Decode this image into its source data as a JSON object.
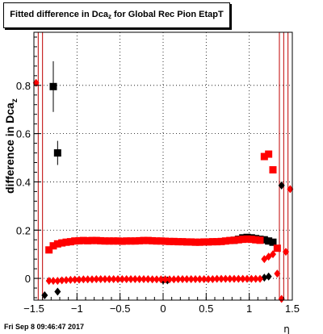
{
  "title": {
    "prefix": "Fitted difference in Dca",
    "subscript": "z",
    "suffix": " for Global Rec Pion EtapT"
  },
  "footer": {
    "timestamp": "Fri Sep  8 09:46:47 2017"
  },
  "chart_data": {
    "type": "scatter",
    "title": "Fitted difference in Dcaz for Global Rec Pion EtapT",
    "xlabel": "η",
    "ylabel": "difference in Dcaz",
    "xlim": [
      -1.5,
      1.5
    ],
    "ylim": [
      -0.09,
      1.02
    ],
    "x_ticks": [
      -1.5,
      -1,
      -0.5,
      0,
      0.5,
      1,
      1.5
    ],
    "x_tick_labels": [
      "−1.5",
      "−1",
      "−0.5",
      "0",
      "0.5",
      "1",
      "1.5"
    ],
    "y_ticks": [
      0,
      0.2,
      0.4,
      0.6,
      0.8
    ],
    "y_tick_labels": [
      "0",
      "0.2",
      "0.4",
      "0.6",
      "0.8"
    ],
    "grid": true,
    "vertical_lines": [
      -1.45,
      -1.4,
      1.35,
      1.4,
      1.45
    ],
    "colors": {
      "series_red": "#ff0000",
      "series_black": "#000000",
      "lines": "#c00000"
    },
    "series": [
      {
        "marker": "square",
        "color": "#000000",
        "points": [
          {
            "x": -1.275,
            "y": 0.795,
            "err": 0.105
          },
          {
            "x": -1.225,
            "y": 0.52,
            "err": 0.05
          },
          {
            "x": 0.825,
            "y": 0.158
          },
          {
            "x": 0.875,
            "y": 0.162
          },
          {
            "x": 0.925,
            "y": 0.168
          },
          {
            "x": 0.975,
            "y": 0.17
          },
          {
            "x": 1.025,
            "y": 0.168
          },
          {
            "x": 1.075,
            "y": 0.165
          },
          {
            "x": 1.125,
            "y": 0.162
          },
          {
            "x": 1.175,
            "y": 0.16
          },
          {
            "x": 1.225,
            "y": 0.155
          },
          {
            "x": 1.275,
            "y": 0.15
          }
        ]
      },
      {
        "marker": "diamond",
        "color": "#000000",
        "points": [
          {
            "x": -1.375,
            "y": -0.07
          },
          {
            "x": -1.225,
            "y": -0.055
          },
          {
            "x": 0.0,
            "y": -0.008
          },
          {
            "x": 0.05,
            "y": -0.008
          },
          {
            "x": 1.175,
            "y": 0.003
          },
          {
            "x": 1.225,
            "y": 0.008
          },
          {
            "x": 1.375,
            "y": 0.385
          }
        ]
      },
      {
        "marker": "square",
        "color": "#ff0000",
        "points": [
          {
            "x": -1.325,
            "y": 0.118
          },
          {
            "x": -1.275,
            "y": 0.135
          },
          {
            "x": -1.225,
            "y": 0.143
          },
          {
            "x": -1.175,
            "y": 0.147
          },
          {
            "x": -1.125,
            "y": 0.15
          },
          {
            "x": -1.075,
            "y": 0.152
          },
          {
            "x": -1.025,
            "y": 0.155
          },
          {
            "x": -0.975,
            "y": 0.156
          },
          {
            "x": -0.925,
            "y": 0.157
          },
          {
            "x": -0.875,
            "y": 0.156
          },
          {
            "x": -0.825,
            "y": 0.157
          },
          {
            "x": -0.775,
            "y": 0.157
          },
          {
            "x": -0.725,
            "y": 0.156
          },
          {
            "x": -0.675,
            "y": 0.155
          },
          {
            "x": -0.625,
            "y": 0.155
          },
          {
            "x": -0.575,
            "y": 0.155
          },
          {
            "x": -0.525,
            "y": 0.155
          },
          {
            "x": -0.475,
            "y": 0.154
          },
          {
            "x": -0.425,
            "y": 0.155
          },
          {
            "x": -0.375,
            "y": 0.155
          },
          {
            "x": -0.325,
            "y": 0.155
          },
          {
            "x": -0.275,
            "y": 0.156
          },
          {
            "x": -0.225,
            "y": 0.157
          },
          {
            "x": -0.175,
            "y": 0.157
          },
          {
            "x": -0.125,
            "y": 0.156
          },
          {
            "x": -0.075,
            "y": 0.155
          },
          {
            "x": -0.025,
            "y": 0.155
          },
          {
            "x": 0.025,
            "y": 0.154
          },
          {
            "x": 0.075,
            "y": 0.153
          },
          {
            "x": 0.125,
            "y": 0.153
          },
          {
            "x": 0.175,
            "y": 0.152
          },
          {
            "x": 0.225,
            "y": 0.152
          },
          {
            "x": 0.275,
            "y": 0.151
          },
          {
            "x": 0.325,
            "y": 0.151
          },
          {
            "x": 0.375,
            "y": 0.15
          },
          {
            "x": 0.425,
            "y": 0.15
          },
          {
            "x": 0.475,
            "y": 0.151
          },
          {
            "x": 0.525,
            "y": 0.151
          },
          {
            "x": 0.575,
            "y": 0.152
          },
          {
            "x": 0.625,
            "y": 0.152
          },
          {
            "x": 0.675,
            "y": 0.153
          },
          {
            "x": 0.725,
            "y": 0.155
          },
          {
            "x": 0.775,
            "y": 0.157
          },
          {
            "x": 0.825,
            "y": 0.158
          },
          {
            "x": 0.875,
            "y": 0.16
          },
          {
            "x": 0.925,
            "y": 0.162
          },
          {
            "x": 0.975,
            "y": 0.163
          },
          {
            "x": 1.025,
            "y": 0.162
          },
          {
            "x": 1.075,
            "y": 0.16
          },
          {
            "x": 1.125,
            "y": 0.158
          },
          {
            "x": 1.175,
            "y": 0.505
          },
          {
            "x": 1.225,
            "y": 0.515
          },
          {
            "x": 1.275,
            "y": 0.45
          },
          {
            "x": 1.325,
            "y": 0.125
          }
        ]
      },
      {
        "marker": "diamond",
        "color": "#ff0000",
        "points": [
          {
            "x": -1.475,
            "y": 0.81
          },
          {
            "x": -1.325,
            "y": -0.01
          },
          {
            "x": -1.275,
            "y": -0.01
          },
          {
            "x": -1.225,
            "y": -0.01
          },
          {
            "x": -1.175,
            "y": -0.008
          },
          {
            "x": -1.125,
            "y": -0.007
          },
          {
            "x": -1.075,
            "y": -0.006
          },
          {
            "x": -1.025,
            "y": -0.005
          },
          {
            "x": -0.975,
            "y": -0.005
          },
          {
            "x": -0.925,
            "y": -0.004
          },
          {
            "x": -0.875,
            "y": -0.004
          },
          {
            "x": -0.825,
            "y": -0.004
          },
          {
            "x": -0.775,
            "y": -0.003
          },
          {
            "x": -0.725,
            "y": -0.003
          },
          {
            "x": -0.675,
            "y": -0.003
          },
          {
            "x": -0.625,
            "y": -0.003
          },
          {
            "x": -0.575,
            "y": -0.003
          },
          {
            "x": -0.525,
            "y": -0.003
          },
          {
            "x": -0.475,
            "y": -0.003
          },
          {
            "x": -0.425,
            "y": -0.003
          },
          {
            "x": -0.375,
            "y": -0.003
          },
          {
            "x": -0.325,
            "y": -0.003
          },
          {
            "x": -0.275,
            "y": -0.003
          },
          {
            "x": -0.225,
            "y": -0.003
          },
          {
            "x": -0.175,
            "y": -0.003
          },
          {
            "x": -0.125,
            "y": -0.004
          },
          {
            "x": -0.075,
            "y": -0.004
          },
          {
            "x": -0.025,
            "y": -0.004
          },
          {
            "x": 0.025,
            "y": -0.004
          },
          {
            "x": 0.075,
            "y": -0.004
          },
          {
            "x": 0.125,
            "y": -0.004
          },
          {
            "x": 0.175,
            "y": -0.003
          },
          {
            "x": 0.225,
            "y": -0.003
          },
          {
            "x": 0.275,
            "y": -0.003
          },
          {
            "x": 0.325,
            "y": -0.003
          },
          {
            "x": 0.375,
            "y": -0.003
          },
          {
            "x": 0.425,
            "y": -0.003
          },
          {
            "x": 0.475,
            "y": -0.003
          },
          {
            "x": 0.525,
            "y": -0.003
          },
          {
            "x": 0.575,
            "y": -0.003
          },
          {
            "x": 0.625,
            "y": -0.002
          },
          {
            "x": 0.675,
            "y": -0.002
          },
          {
            "x": 0.725,
            "y": -0.002
          },
          {
            "x": 0.775,
            "y": -0.002
          },
          {
            "x": 0.825,
            "y": -0.002
          },
          {
            "x": 0.875,
            "y": -0.002
          },
          {
            "x": 0.925,
            "y": -0.002
          },
          {
            "x": 0.975,
            "y": -0.002
          },
          {
            "x": 1.025,
            "y": -0.002
          },
          {
            "x": 1.075,
            "y": -0.002
          },
          {
            "x": 1.125,
            "y": -0.002
          },
          {
            "x": 1.175,
            "y": 0.08
          },
          {
            "x": 1.225,
            "y": 0.09
          },
          {
            "x": 1.275,
            "y": 0.1
          },
          {
            "x": 1.325,
            "y": 0.02
          },
          {
            "x": 1.375,
            "y": -0.085
          },
          {
            "x": 1.425,
            "y": 0.11
          },
          {
            "x": 1.475,
            "y": 0.37
          }
        ]
      }
    ]
  }
}
